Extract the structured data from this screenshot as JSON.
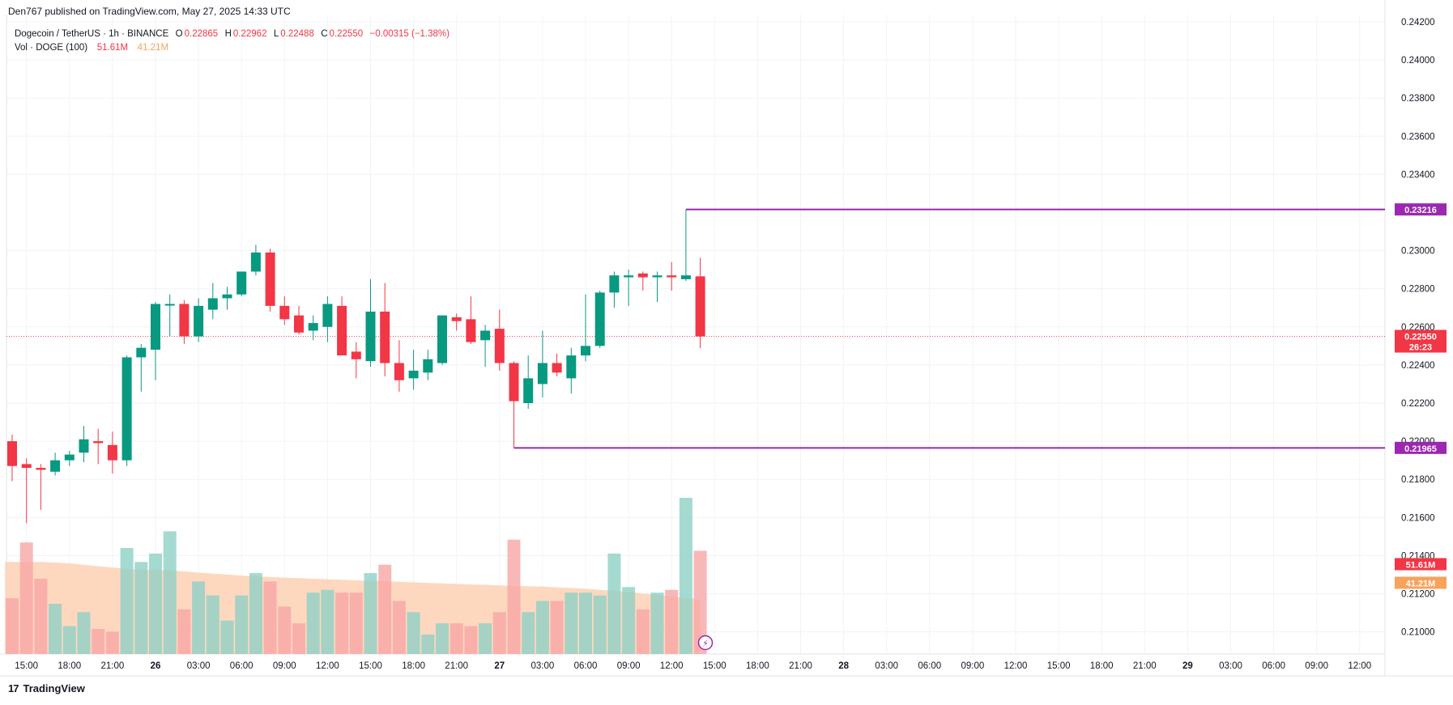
{
  "header": {
    "published_by": "Den767 published on TradingView.com, May 27, 2025 14:33 UTC"
  },
  "legend": {
    "symbol": "Dogecoin / TetherUS · 1h · BINANCE",
    "open_label": "O",
    "open": "0.22865",
    "high_label": "H",
    "high": "0.22962",
    "low_label": "L",
    "low": "0.22488",
    "close_label": "C",
    "close": "0.22550",
    "change": "−0.00315 (−1.38%)",
    "volume_label": "Vol · DOGE (100)",
    "volume": "51.61M",
    "volume_ma": "41.21M"
  },
  "footer": {
    "brand": "TradingView",
    "logo_mark": "17"
  },
  "colors": {
    "up": "#089981",
    "down": "#f23645",
    "vol_up": "#8fd1c6",
    "vol_down": "#f7a6a6",
    "vol_ma_fill": "#fdd1b4",
    "level": "#9c27b0",
    "grid": "#f0f3fa",
    "orange": "#f7a35c"
  },
  "chart_data": {
    "type": "candlestick",
    "title": "Dogecoin / TetherUS · 1h · BINANCE",
    "ylim": [
      0.209,
      0.242
    ],
    "y_ticks": [
      "0.24200",
      "0.24000",
      "0.23800",
      "0.23600",
      "0.23400",
      "0.23000",
      "0.22800",
      "0.22600",
      "0.22400",
      "0.22200",
      "0.22000",
      "0.21800",
      "0.21600",
      "0.21400",
      "0.21200",
      "0.21000"
    ],
    "x_ticks": [
      {
        "label": "15:00",
        "idx": 1
      },
      {
        "label": "18:00",
        "idx": 4
      },
      {
        "label": "21:00",
        "idx": 7
      },
      {
        "label": "26",
        "idx": 10,
        "bold": true
      },
      {
        "label": "03:00",
        "idx": 13
      },
      {
        "label": "06:00",
        "idx": 16
      },
      {
        "label": "09:00",
        "idx": 19
      },
      {
        "label": "12:00",
        "idx": 22
      },
      {
        "label": "15:00",
        "idx": 25
      },
      {
        "label": "18:00",
        "idx": 28
      },
      {
        "label": "21:00",
        "idx": 31
      },
      {
        "label": "27",
        "idx": 34,
        "bold": true
      },
      {
        "label": "03:00",
        "idx": 37
      },
      {
        "label": "06:00",
        "idx": 40
      },
      {
        "label": "09:00",
        "idx": 43
      },
      {
        "label": "12:00",
        "idx": 46
      },
      {
        "label": "15:00",
        "idx": 49
      },
      {
        "label": "18:00",
        "idx": 52
      },
      {
        "label": "21:00",
        "idx": 55
      },
      {
        "label": "28",
        "idx": 58,
        "bold": true
      },
      {
        "label": "03:00",
        "idx": 61
      },
      {
        "label": "06:00",
        "idx": 64
      },
      {
        "label": "09:00",
        "idx": 67
      },
      {
        "label": "12:00",
        "idx": 70
      },
      {
        "label": "15:00",
        "idx": 73
      },
      {
        "label": "18:00",
        "idx": 76
      },
      {
        "label": "21:00",
        "idx": 79
      },
      {
        "label": "29",
        "idx": 82,
        "bold": true
      },
      {
        "label": "03:00",
        "idx": 85
      },
      {
        "label": "06:00",
        "idx": 88
      },
      {
        "label": "09:00",
        "idx": 91
      },
      {
        "label": "12:00",
        "idx": 94
      }
    ],
    "candles": [
      {
        "o": 0.22,
        "h": 0.22035,
        "l": 0.2179,
        "c": 0.2187
      },
      {
        "o": 0.2188,
        "h": 0.2191,
        "l": 0.2157,
        "c": 0.2186
      },
      {
        "o": 0.2186,
        "h": 0.2188,
        "l": 0.2164,
        "c": 0.2185
      },
      {
        "o": 0.2184,
        "h": 0.2194,
        "l": 0.2182,
        "c": 0.219
      },
      {
        "o": 0.219,
        "h": 0.2195,
        "l": 0.2187,
        "c": 0.2193
      },
      {
        "o": 0.2194,
        "h": 0.2208,
        "l": 0.2189,
        "c": 0.2201
      },
      {
        "o": 0.22,
        "h": 0.22065,
        "l": 0.2188,
        "c": 0.2199
      },
      {
        "o": 0.2198,
        "h": 0.2205,
        "l": 0.2183,
        "c": 0.219
      },
      {
        "o": 0.219,
        "h": 0.2245,
        "l": 0.2187,
        "c": 0.2244
      },
      {
        "o": 0.2244,
        "h": 0.2251,
        "l": 0.2226,
        "c": 0.2249
      },
      {
        "o": 0.2248,
        "h": 0.2273,
        "l": 0.2232,
        "c": 0.2272
      },
      {
        "o": 0.2272,
        "h": 0.2277,
        "l": 0.2255,
        "c": 0.2272
      },
      {
        "o": 0.2272,
        "h": 0.2274,
        "l": 0.2251,
        "c": 0.2255
      },
      {
        "o": 0.2255,
        "h": 0.2275,
        "l": 0.2252,
        "c": 0.2271
      },
      {
        "o": 0.2269,
        "h": 0.2283,
        "l": 0.2264,
        "c": 0.2275
      },
      {
        "o": 0.2275,
        "h": 0.2281,
        "l": 0.2269,
        "c": 0.2277
      },
      {
        "o": 0.2277,
        "h": 0.2289,
        "l": 0.2276,
        "c": 0.2289
      },
      {
        "o": 0.2289,
        "h": 0.2303,
        "l": 0.2287,
        "c": 0.2299
      },
      {
        "o": 0.2299,
        "h": 0.2301,
        "l": 0.2268,
        "c": 0.2271
      },
      {
        "o": 0.2271,
        "h": 0.2276,
        "l": 0.2261,
        "c": 0.2264
      },
      {
        "o": 0.2266,
        "h": 0.2271,
        "l": 0.2256,
        "c": 0.2257
      },
      {
        "o": 0.2258,
        "h": 0.2266,
        "l": 0.2253,
        "c": 0.2262
      },
      {
        "o": 0.226,
        "h": 0.2276,
        "l": 0.2252,
        "c": 0.2272
      },
      {
        "o": 0.2271,
        "h": 0.2276,
        "l": 0.2245,
        "c": 0.2245
      },
      {
        "o": 0.2247,
        "h": 0.2252,
        "l": 0.2233,
        "c": 0.2243
      },
      {
        "o": 0.2242,
        "h": 0.2285,
        "l": 0.2239,
        "c": 0.2268
      },
      {
        "o": 0.2268,
        "h": 0.2283,
        "l": 0.2234,
        "c": 0.2241
      },
      {
        "o": 0.2241,
        "h": 0.2253,
        "l": 0.2226,
        "c": 0.2232
      },
      {
        "o": 0.2233,
        "h": 0.2248,
        "l": 0.2227,
        "c": 0.2237
      },
      {
        "o": 0.2236,
        "h": 0.2248,
        "l": 0.2232,
        "c": 0.2243
      },
      {
        "o": 0.2241,
        "h": 0.2266,
        "l": 0.224,
        "c": 0.2266
      },
      {
        "o": 0.2265,
        "h": 0.2267,
        "l": 0.2258,
        "c": 0.2263
      },
      {
        "o": 0.2264,
        "h": 0.2276,
        "l": 0.2251,
        "c": 0.2252
      },
      {
        "o": 0.2253,
        "h": 0.2261,
        "l": 0.2239,
        "c": 0.2258
      },
      {
        "o": 0.2259,
        "h": 0.2269,
        "l": 0.2237,
        "c": 0.2241
      },
      {
        "o": 0.2241,
        "h": 0.2242,
        "l": 0.21965,
        "c": 0.2221
      },
      {
        "o": 0.222,
        "h": 0.2245,
        "l": 0.2217,
        "c": 0.2233
      },
      {
        "o": 0.223,
        "h": 0.2258,
        "l": 0.2223,
        "c": 0.2241
      },
      {
        "o": 0.2241,
        "h": 0.2246,
        "l": 0.2234,
        "c": 0.2236
      },
      {
        "o": 0.2233,
        "h": 0.2249,
        "l": 0.2225,
        "c": 0.2245
      },
      {
        "o": 0.2245,
        "h": 0.2277,
        "l": 0.2242,
        "c": 0.225
      },
      {
        "o": 0.225,
        "h": 0.2279,
        "l": 0.2249,
        "c": 0.2278
      },
      {
        "o": 0.2278,
        "h": 0.2289,
        "l": 0.227,
        "c": 0.2287
      },
      {
        "o": 0.2286,
        "h": 0.229,
        "l": 0.2271,
        "c": 0.2287
      },
      {
        "o": 0.2288,
        "h": 0.2289,
        "l": 0.2279,
        "c": 0.2286
      },
      {
        "o": 0.2286,
        "h": 0.2289,
        "l": 0.2273,
        "c": 0.2287
      },
      {
        "o": 0.2287,
        "h": 0.2294,
        "l": 0.2279,
        "c": 0.2286
      },
      {
        "o": 0.2285,
        "h": 0.23216,
        "l": 0.2284,
        "c": 0.2287
      },
      {
        "o": 0.22865,
        "h": 0.22962,
        "l": 0.22488,
        "c": 0.2255
      }
    ],
    "volume": [
      20,
      40,
      27,
      18,
      10,
      15,
      9,
      8,
      38,
      33,
      36,
      44,
      16,
      26,
      21,
      12,
      21,
      29,
      26,
      17,
      11,
      22,
      23,
      22,
      22,
      29,
      32,
      19,
      15,
      7,
      11,
      11,
      10,
      11,
      15,
      41,
      15,
      19,
      19,
      22,
      22,
      21,
      36,
      24,
      16,
      22,
      23,
      56,
      37
    ],
    "volume_ma": [
      33,
      33,
      33,
      32.8,
      32.5,
      32,
      31.5,
      31,
      30.5,
      30.3,
      30.1,
      30,
      29.6,
      29.2,
      28.8,
      28.5,
      28.1,
      27.8,
      27.6,
      27.4,
      27.2,
      27,
      26.8,
      26.6,
      26.4,
      26.2,
      26.1,
      25.9,
      25.7,
      25.5,
      25.3,
      25.1,
      24.9,
      24.8,
      24.6,
      24.4,
      24.3,
      24.2,
      23.9,
      23.7,
      23.4,
      23,
      22.6,
      22.2,
      21.7,
      21.2,
      20.6,
      20.1,
      19.6
    ],
    "volume_max": 56,
    "levels": [
      {
        "label": "0.23216",
        "value": 0.23216,
        "start_idx": 47
      },
      {
        "label": "0.21965",
        "value": 0.21965,
        "start_idx": 35
      }
    ],
    "last_price": {
      "value": 0.2255,
      "label": "0.22550",
      "countdown": "26:23"
    },
    "volume_label": "51.61M",
    "volume_ma_label": "41.21M"
  }
}
